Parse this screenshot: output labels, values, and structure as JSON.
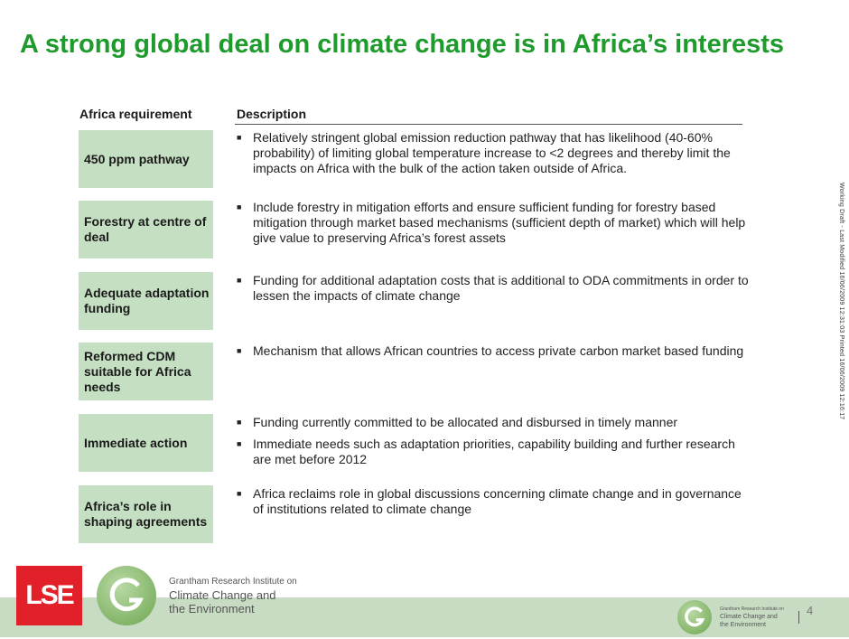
{
  "slide": {
    "title": "A strong global deal on climate change is in Africa’s interests",
    "page_number": "4",
    "vertical_note": "Working Draft - Last Modified 16/06/2009 12:31:03     Printed 16/06/2009 12:16:17"
  },
  "table": {
    "col_requirement": "Africa requirement",
    "col_description": "Description",
    "rows": [
      {
        "requirement": "450 ppm pathway",
        "bullets": [
          "Relatively stringent global emission reduction pathway that has likelihood (40-60% probability) of limiting global temperature increase to <2 degrees and thereby limit the impacts on Africa with the bulk of the action taken outside of Africa."
        ]
      },
      {
        "requirement": "Forestry at centre of deal",
        "bullets": [
          "Include forestry in mitigation efforts and ensure sufficient funding for forestry based mitigation through market based mechanisms (sufficient depth of market) which will help give value to preserving Africa’s forest assets"
        ]
      },
      {
        "requirement": "Adequate adaptation funding",
        "bullets": [
          "Funding for additional adaptation costs that is additional to ODA commitments in order to lessen the impacts of climate change"
        ]
      },
      {
        "requirement": "Reformed CDM suitable for Africa needs",
        "bullets": [
          "Mechanism that allows African countries to access private carbon market based funding"
        ]
      },
      {
        "requirement": "Immediate action",
        "bullets": [
          "Funding currently committed to be allocated and disbursed in timely manner",
          "Immediate needs such as adaptation priorities, capability building and further research are met before 2012"
        ]
      },
      {
        "requirement": "Africa’s role in shaping agreements",
        "bullets": [
          "Africa reclaims role in global discussions concerning climate change and in governance of institutions related to climate change"
        ]
      }
    ]
  },
  "footer": {
    "lse_logo_text": "LSE",
    "institute_line1": "Grantham Research Institute on",
    "institute_line2": "Climate Change and",
    "institute_line3": "the Environment"
  },
  "colors": {
    "title_green": "#1f9a2c",
    "box_green": "#c5dfc2",
    "band_green": "#c7dcc3",
    "lse_red": "#e2202a"
  }
}
